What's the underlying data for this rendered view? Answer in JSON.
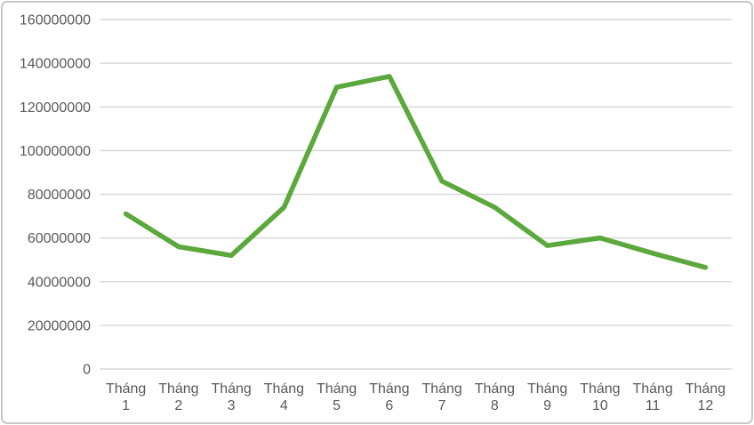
{
  "chart_data": {
    "type": "line",
    "title": "",
    "xlabel": "",
    "ylabel": "",
    "categories": [
      "Tháng 1",
      "Tháng 2",
      "Tháng 3",
      "Tháng 4",
      "Tháng 5",
      "Tháng 6",
      "Tháng 7",
      "Tháng 8",
      "Tháng 9",
      "Tháng 10",
      "Tháng 11",
      "Tháng 12"
    ],
    "series": [
      {
        "name": "",
        "values": [
          71000000,
          56000000,
          52000000,
          74000000,
          129000000,
          134000000,
          86000000,
          74000000,
          56500000,
          60000000,
          53000000,
          46500000
        ]
      }
    ],
    "ylim": [
      0,
      160000000
    ],
    "yticks": [
      {
        "value": 0,
        "label": "0"
      },
      {
        "value": 20000000,
        "label": "20000000"
      },
      {
        "value": 40000000,
        "label": "40000000"
      },
      {
        "value": 60000000,
        "label": "60000000"
      },
      {
        "value": 80000000,
        "label": "80000000"
      },
      {
        "value": 100000000,
        "label": "100000000"
      },
      {
        "value": 120000000,
        "label": "120000000"
      },
      {
        "value": 140000000,
        "label": "140000000"
      },
      {
        "value": 160000000,
        "label": "160000000"
      }
    ],
    "grid": true,
    "legend_position": "none",
    "colors": {
      "line": "#5BA83C",
      "gridline": "#D9D9D9",
      "tick_text": "#595959",
      "background": "#FFFFFF",
      "frame_border": "#C9C9C9"
    }
  }
}
